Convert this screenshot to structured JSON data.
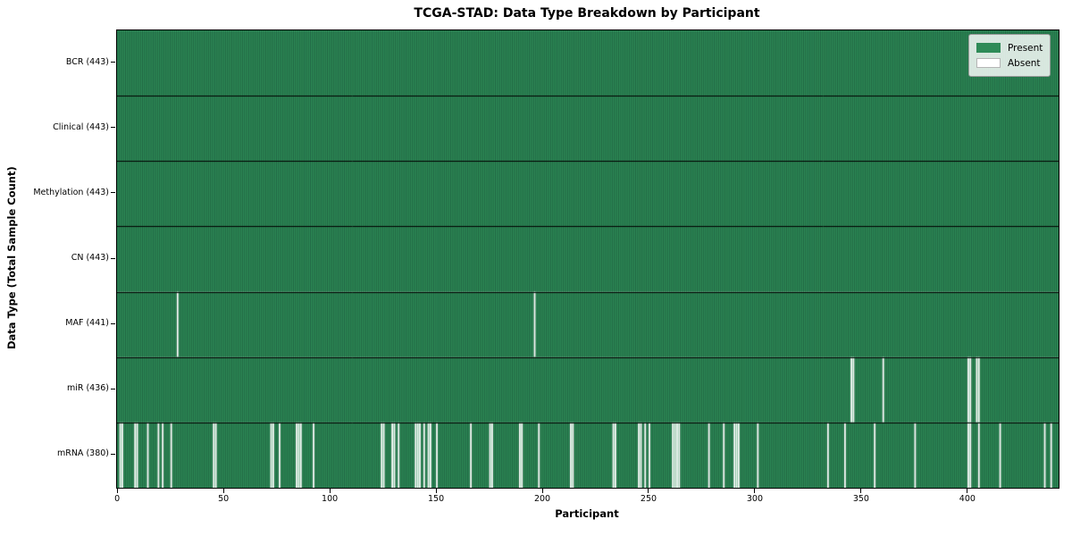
{
  "chart_data": {
    "type": "heatmap",
    "title": "TCGA-STAD: Data Type Breakdown by Participant",
    "xlabel": "Participant",
    "ylabel": "Data Type (Total Sample Count)",
    "n_participants": 443,
    "xlim": [
      -0.5,
      442.5
    ],
    "x_ticks": [
      0,
      50,
      100,
      150,
      200,
      250,
      300,
      350,
      400
    ],
    "legend": {
      "present": "Present",
      "absent": "Absent"
    },
    "legend_position": "upper right",
    "colors": {
      "present": "#2e8b57",
      "absent": "#ffffff",
      "bar_edge": "#1d5a3c",
      "row_divider": "#000000",
      "spine": "#000000"
    },
    "rows": [
      {
        "data_type": "BCR",
        "label": "BCR (443)",
        "present_count": 443,
        "absent_participants": []
      },
      {
        "data_type": "Clinical",
        "label": "Clinical (443)",
        "present_count": 443,
        "absent_participants": []
      },
      {
        "data_type": "Methylation",
        "label": "Methylation (443)",
        "present_count": 443,
        "absent_participants": []
      },
      {
        "data_type": "CN",
        "label": "CN (443)",
        "present_count": 443,
        "absent_participants": []
      },
      {
        "data_type": "MAF",
        "label": "MAF (441)",
        "present_count": 441,
        "absent_participants": [
          28,
          196
        ]
      },
      {
        "data_type": "miR",
        "label": "miR (436)",
        "present_count": 436,
        "absent_participants": [
          345,
          346,
          360,
          400,
          401,
          404,
          405
        ]
      },
      {
        "data_type": "mRNA",
        "label": "mRNA (380)",
        "present_count": 380,
        "absent_participants": [
          1,
          2,
          8,
          9,
          14,
          19,
          21,
          25,
          45,
          46,
          72,
          73,
          76,
          84,
          85,
          86,
          92,
          124,
          125,
          129,
          130,
          132,
          140,
          141,
          142,
          144,
          146,
          147,
          150,
          166,
          175,
          176,
          189,
          190,
          198,
          213,
          214,
          233,
          234,
          245,
          246,
          248,
          250,
          261,
          262,
          263,
          264,
          278,
          285,
          290,
          291,
          292,
          301,
          334,
          342,
          356,
          375,
          400,
          401,
          405,
          415,
          436,
          439
        ]
      }
    ]
  }
}
